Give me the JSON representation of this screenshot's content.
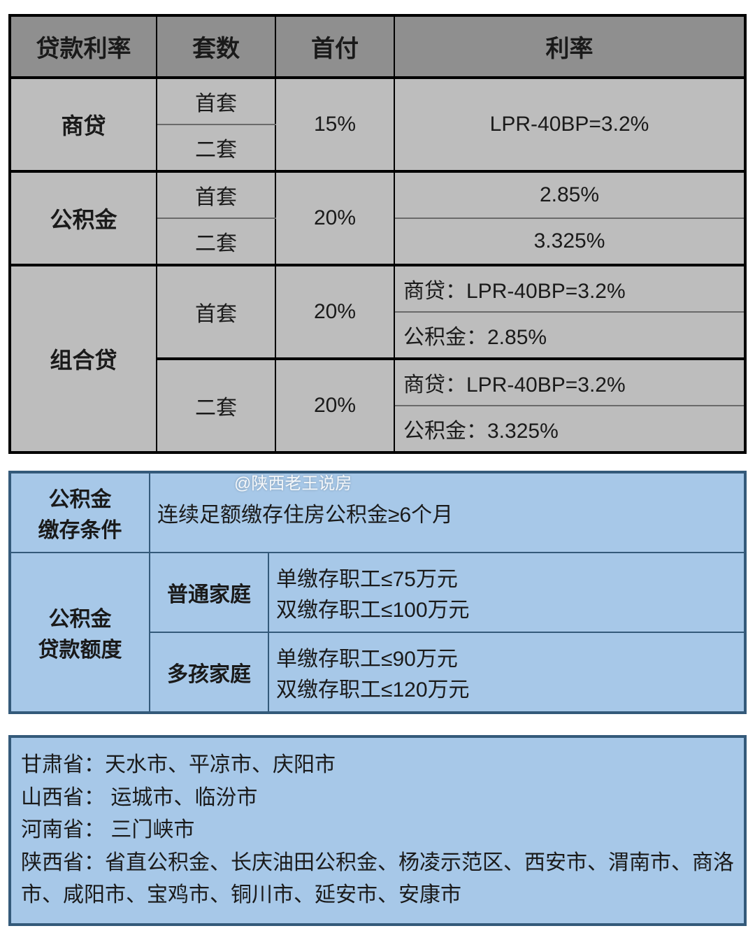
{
  "colors": {
    "t1_header_bg": "#8f8f8f",
    "t1_cell_bg": "#bdbdbd",
    "t1_border": "#000000",
    "t2_bg": "#a7c8e8",
    "t2_border": "#345a7a",
    "text": "#1a1a1a"
  },
  "watermark": "@陕西老王说房",
  "table1": {
    "headers": [
      "贷款利率",
      "套数",
      "首付",
      "利率"
    ],
    "sections": [
      {
        "name": "商贷",
        "rows": [
          {
            "unit": "首套"
          },
          {
            "unit": "二套"
          }
        ],
        "downpay": "15%",
        "rate_merged": "LPR-40BP=3.2%"
      },
      {
        "name": "公积金",
        "downpay": "20%",
        "rows": [
          {
            "unit": "首套",
            "rate": "2.85%"
          },
          {
            "unit": "二套",
            "rate": "3.325%"
          }
        ]
      },
      {
        "name": "组合贷",
        "groups": [
          {
            "unit": "首套",
            "downpay": "20%",
            "rates": [
              "商贷：LPR-40BP=3.2%",
              "公积金：2.85%"
            ]
          },
          {
            "unit": "二套",
            "downpay": "20%",
            "rates": [
              "商贷：LPR-40BP=3.2%",
              "公积金：3.325%"
            ]
          }
        ]
      }
    ]
  },
  "table2": {
    "row1": {
      "label_line1": "公积金",
      "label_line2": "缴存条件",
      "value": "连续足额缴存住房公积金≥6个月"
    },
    "row2": {
      "label_line1": "公积金",
      "label_line2": "贷款额度",
      "groups": [
        {
          "name": "普通家庭",
          "line1": "单缴存职工≤75万元",
          "line2": "双缴存职工≤100万元"
        },
        {
          "name": "多孩家庭",
          "line1": "单缴存职工≤90万元",
          "line2": "双缴存职工≤120万元"
        }
      ]
    }
  },
  "box3": {
    "lines": [
      "甘肃省：天水市、平凉市、庆阳市",
      "山西省： 运城市、临汾市",
      "河南省： 三门峡市",
      "陕西省：省直公积金、长庆油田公积金、杨凌示范区、西安市、渭南市、商洛市、咸阳市、宝鸡市、铜川市、延安市、安康市"
    ]
  }
}
